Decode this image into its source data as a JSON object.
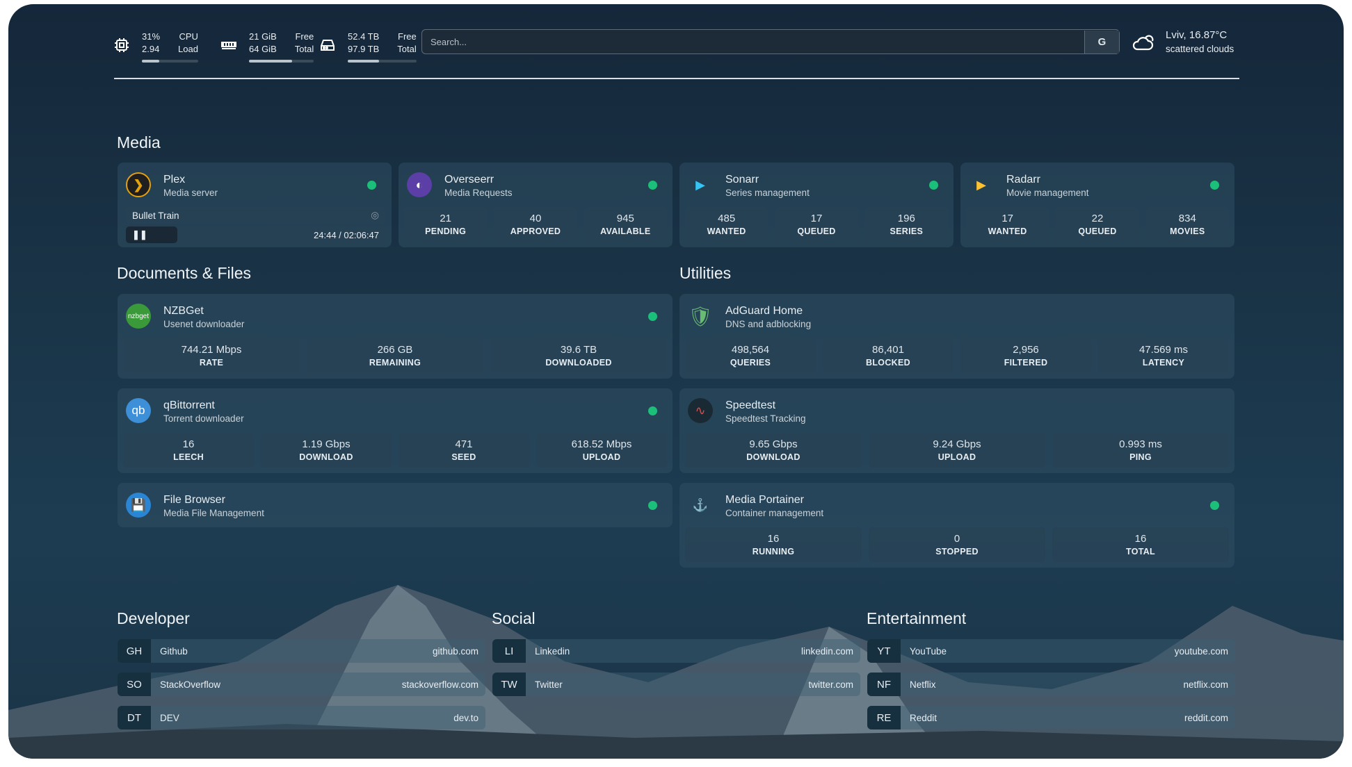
{
  "top": {
    "cpu": {
      "v1": "31%",
      "v2": "2.94",
      "l1": "CPU",
      "l2": "Load",
      "pct": 31,
      "icon": "cpu-icon"
    },
    "ram": {
      "v1": "21 GiB",
      "v2": "64 GiB",
      "l1": "Free",
      "l2": "Total",
      "pct": 67,
      "icon": "memory-icon"
    },
    "disk": {
      "v1": "52.4 TB",
      "v2": "97.9 TB",
      "l1": "Free",
      "l2": "Total",
      "pct": 46,
      "icon": "harddrive-icon"
    },
    "search": {
      "placeholder": "Search...",
      "button": "G"
    },
    "weather": {
      "line1": "Lviv, 16.87°C",
      "line2": "scattered clouds",
      "icon": "cloud-icon"
    }
  },
  "colors": {
    "status_ok": "#1cbf7a",
    "plex": "#e5a00d",
    "bg": "#1a3447"
  },
  "sections": {
    "media": "Media",
    "docs": "Documents & Files",
    "utils": "Utilities",
    "dev": "Developer",
    "social": "Social",
    "ent": "Entertainment"
  },
  "plex": {
    "name": "Plex",
    "desc": "Media server",
    "title": "Bullet Train",
    "time": "24:44 / 02:06:47",
    "progress": 20
  },
  "cards": [
    {
      "id": "overseerr",
      "name": "Overseerr",
      "desc": "Media Requests",
      "icon": "overseerr-icon",
      "stats": [
        [
          "21",
          "PENDING"
        ],
        [
          "40",
          "APPROVED"
        ],
        [
          "945",
          "AVAILABLE"
        ]
      ]
    },
    {
      "id": "sonarr",
      "name": "Sonarr",
      "desc": "Series management",
      "icon": "sonarr-icon",
      "stats": [
        [
          "485",
          "WANTED"
        ],
        [
          "17",
          "QUEUED"
        ],
        [
          "196",
          "SERIES"
        ]
      ]
    },
    {
      "id": "radarr",
      "name": "Radarr",
      "desc": "Movie management",
      "icon": "radarr-icon",
      "stats": [
        [
          "17",
          "WANTED"
        ],
        [
          "22",
          "QUEUED"
        ],
        [
          "834",
          "MOVIES"
        ]
      ]
    },
    {
      "id": "nzbget",
      "name": "NZBGet",
      "desc": "Usenet downloader",
      "icon": "nzbget-icon",
      "logo_text": "nzbget",
      "stats": [
        [
          "744.21 Mbps",
          "RATE"
        ],
        [
          "266 GB",
          "REMAINING"
        ],
        [
          "39.6 TB",
          "DOWNLOADED"
        ]
      ]
    },
    {
      "id": "qbittorrent",
      "name": "qBittorrent",
      "desc": "Torrent downloader",
      "icon": "qbittorrent-icon",
      "logo_text": "qb",
      "stats": [
        [
          "16",
          "LEECH"
        ],
        [
          "1.19 Gbps",
          "DOWNLOAD"
        ],
        [
          "471",
          "SEED"
        ],
        [
          "618.52 Mbps",
          "UPLOAD"
        ]
      ]
    },
    {
      "id": "filebrowser",
      "name": "File Browser",
      "desc": "Media File Management",
      "icon": "filebrowser-icon",
      "stats": []
    },
    {
      "id": "adguard",
      "name": "AdGuard Home",
      "desc": "DNS and adblocking",
      "icon": "shield-icon",
      "nodot": true,
      "stats": [
        [
          "498,564",
          "QUERIES"
        ],
        [
          "86,401",
          "BLOCKED"
        ],
        [
          "2,956",
          "FILTERED"
        ],
        [
          "47.569 ms",
          "LATENCY"
        ]
      ]
    },
    {
      "id": "speedtest",
      "name": "Speedtest",
      "desc": "Speedtest Tracking",
      "icon": "speedtest-icon",
      "nodot": true,
      "stats": [
        [
          "9.65 Gbps",
          "DOWNLOAD"
        ],
        [
          "9.24 Gbps",
          "UPLOAD"
        ],
        [
          "0.993 ms",
          "PING"
        ]
      ]
    },
    {
      "id": "portainer",
      "name": "Media Portainer",
      "desc": "Container management",
      "icon": "portainer-icon",
      "stats": [
        [
          "16",
          "RUNNING"
        ],
        [
          "0",
          "STOPPED"
        ],
        [
          "16",
          "TOTAL"
        ]
      ]
    }
  ],
  "links": [
    [
      [
        "GH",
        "Github",
        "github.com"
      ],
      [
        "SO",
        "StackOverflow",
        "stackoverflow.com"
      ],
      [
        "DT",
        "DEV",
        "dev.to"
      ]
    ],
    [
      [
        "LI",
        "Linkedin",
        "linkedin.com"
      ],
      [
        "TW",
        "Twitter",
        "twitter.com"
      ]
    ],
    [
      [
        "YT",
        "YouTube",
        "youtube.com"
      ],
      [
        "NF",
        "Netflix",
        "netflix.com"
      ],
      [
        "RE",
        "Reddit",
        "reddit.com"
      ]
    ]
  ]
}
